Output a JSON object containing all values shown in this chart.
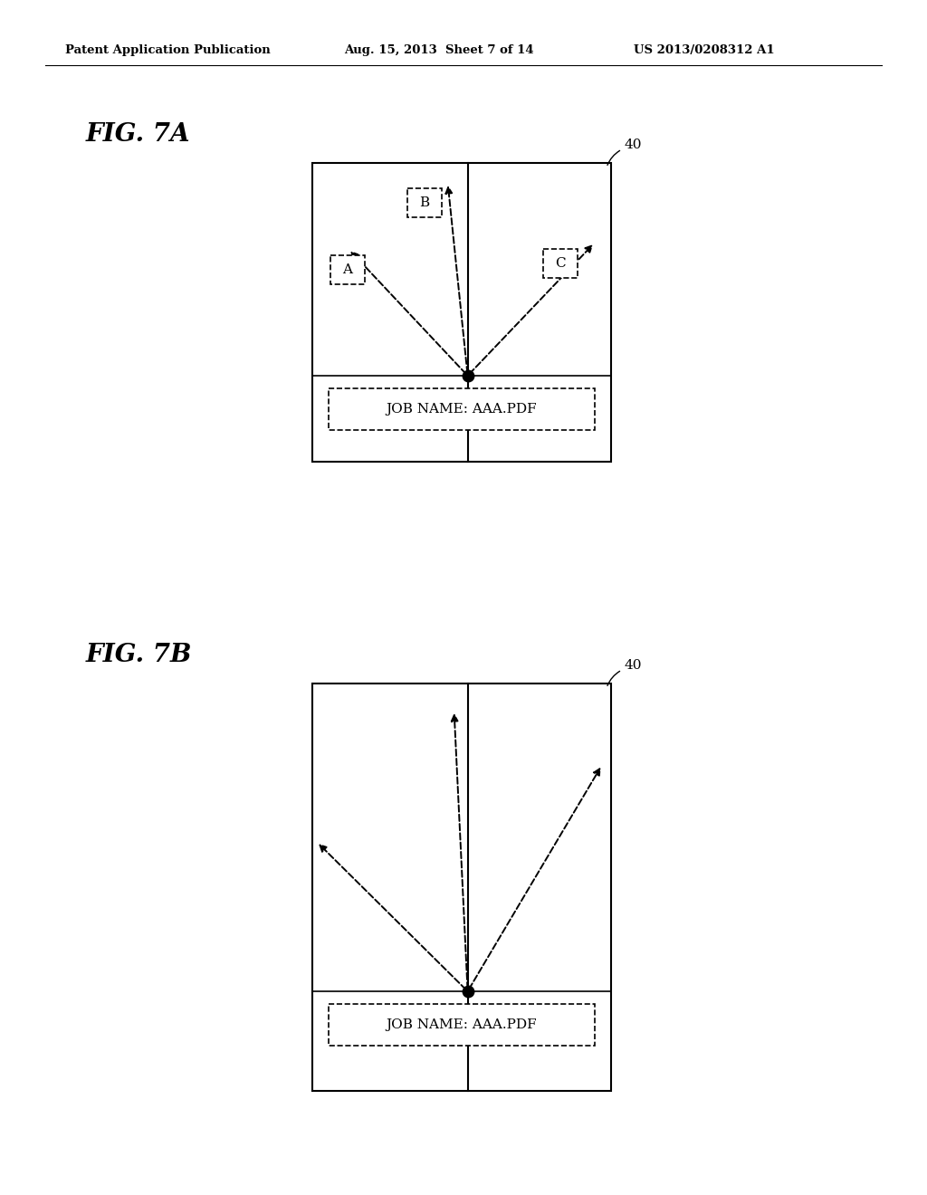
{
  "bg_color": "#ffffff",
  "text_color": "#000000",
  "header_left": "Patent Application Publication",
  "header_mid": "Aug. 15, 2013  Sheet 7 of 14",
  "header_right": "US 2013/0208312 A1",
  "fig7a_label": "FIG. 7A",
  "fig7b_label": "FIG. 7B",
  "box_label": "40",
  "job_name_text": "JOB NAME: AAA.PDF",
  "label_A": "A",
  "label_B": "B",
  "label_C": "C"
}
